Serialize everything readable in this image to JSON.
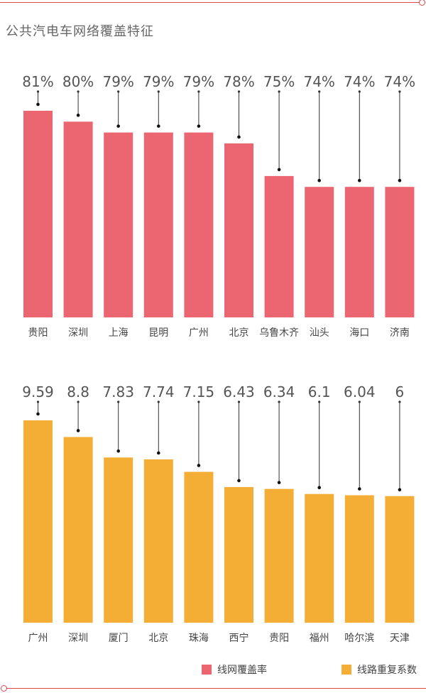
{
  "title": "公共汽电车网络覆盖特征",
  "colors": {
    "coverage": "#ec6672",
    "repeat": "#f4ae36",
    "frame": "#e0444c"
  },
  "legend": [
    {
      "label": "线网覆盖率",
      "color": "#ec6672"
    },
    {
      "label": "线路重复系数",
      "color": "#f4ae36"
    }
  ],
  "chart_data": [
    {
      "type": "bar",
      "series": [
        {
          "name": "线网覆盖率",
          "values": [
            81,
            80,
            79,
            79,
            79,
            78,
            75,
            74,
            74,
            74
          ]
        }
      ],
      "categories": [
        "贵阳",
        "深圳",
        "上海",
        "昆明",
        "广州",
        "北京",
        "乌鲁木齐",
        "汕头",
        "海口",
        "济南"
      ],
      "value_labels": [
        "81%",
        "80%",
        "79%",
        "79%",
        "79%",
        "78%",
        "75%",
        "74%",
        "74%",
        "74%"
      ],
      "unit": "%",
      "ylim": [
        62,
        81
      ],
      "grid": false,
      "legend_position": "bottom"
    },
    {
      "type": "bar",
      "series": [
        {
          "name": "线路重复系数",
          "values": [
            9.59,
            8.8,
            7.83,
            7.74,
            7.15,
            6.43,
            6.34,
            6.1,
            6.04,
            6
          ]
        }
      ],
      "categories": [
        "广州",
        "深圳",
        "厦门",
        "北京",
        "珠海",
        "西宁",
        "贵阳",
        "福州",
        "哈尔滨",
        "天津"
      ],
      "value_labels": [
        "9.59",
        "8.8",
        "7.83",
        "7.74",
        "7.15",
        "6.43",
        "6.34",
        "6.1",
        "6.04",
        "6"
      ],
      "ylim": [
        0,
        9.59
      ],
      "grid": false,
      "legend_position": "bottom"
    }
  ]
}
